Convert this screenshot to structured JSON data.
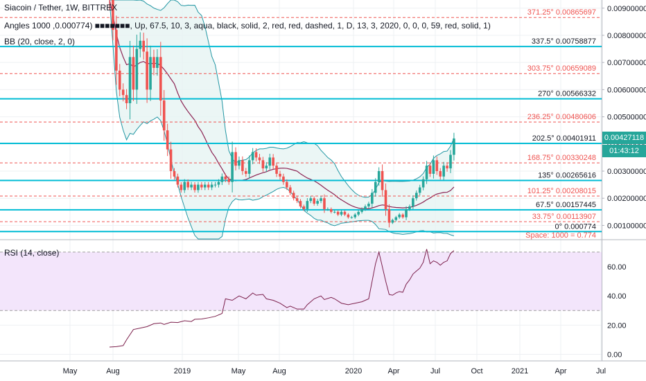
{
  "legend": {
    "symbol": "Siacoin / Tether, 1W, BITTREX",
    "angles": "Angles 1000 ,0.000774) ■■■■■■■, Up, 67.5, 10, 3, aqua, black, solid, 2, red, red, dashed, 1, D, 13, 3, 2020, 0, 0, 0, 59, red, solid, 1)",
    "bb": "BB (20, close, 2, 0)",
    "rsi": "RSI (14, close)"
  },
  "price_tag": {
    "value": "0.00427118",
    "countdown": "01:43:12"
  },
  "space_note": "Space:  1000 = 0.774",
  "colors": {
    "up": "#26a69a",
    "down": "#ef5350",
    "aqua": "#00bcd4",
    "bb_band": "#2196a3",
    "basis": "#8b2252",
    "rsi_line": "#7b1f4b",
    "rsi_zone": "#f3e5fb",
    "grid": "#eef0f3"
  },
  "chart_data": [
    {
      "type": "candlestick",
      "title": "Siacoin / Tether, 1W, BITTREX",
      "price_axis": {
        "range": [
          0.0005,
          0.0093
        ],
        "ticks": [
          0.001,
          0.002,
          0.003,
          0.004,
          0.005,
          0.006,
          0.007,
          0.008,
          0.009
        ],
        "tick_labels": [
          "0.00100000",
          "0.00200000",
          "0.00300000",
          "0.00400000",
          "0.00500000",
          "0.00600000",
          "0.00700000",
          "0.00800000",
          "0.00900000"
        ]
      },
      "time_axis": {
        "labels": [
          "May",
          "Aug",
          "2019",
          "May",
          "Aug",
          "2020",
          "Apr",
          "Jul",
          "Oct",
          "2021",
          "Apr",
          "Jul"
        ]
      },
      "angle_levels": [
        {
          "angle": "0°",
          "price": 0.000774,
          "label": "0° 0.000774",
          "style": "solid"
        },
        {
          "angle": "33.75°",
          "price": 0.00113907,
          "label": "33.75° 0.00113907",
          "style": "dashed"
        },
        {
          "angle": "67.5°",
          "price": 0.00157445,
          "label": "67.5° 0.00157445",
          "style": "solid"
        },
        {
          "angle": "101.25°",
          "price": 0.00208015,
          "label": "101.25° 0.00208015",
          "style": "dashed"
        },
        {
          "angle": "135°",
          "price": 0.00265616,
          "label": "135° 0.00265616",
          "style": "solid"
        },
        {
          "angle": "168.75°",
          "price": 0.00330248,
          "label": "168.75° 0.00330248",
          "style": "dashed"
        },
        {
          "angle": "202.5°",
          "price": 0.00401911,
          "label": "202.5° 0.00401911",
          "style": "solid"
        },
        {
          "angle": "236.25°",
          "price": 0.00480606,
          "label": "236.25° 0.00480606",
          "style": "dashed"
        },
        {
          "angle": "270°",
          "price": 0.00566332,
          "label": "270° 0.00566332",
          "style": "solid"
        },
        {
          "angle": "303.75°",
          "price": 0.00659089,
          "label": "303.75° 0.00659089",
          "style": "dashed"
        },
        {
          "angle": "337.5°",
          "price": 0.00758877,
          "label": "337.5° 0.00758877",
          "style": "solid"
        },
        {
          "angle": "371.25°",
          "price": 0.00865697,
          "label": "371.25° 0.00865697",
          "style": "dashed"
        }
      ],
      "close_path": [
        [
          0,
          0.0093
        ],
        [
          1,
          0.0082
        ],
        [
          2,
          0.0067
        ],
        [
          3,
          0.006
        ],
        [
          4,
          0.0058
        ],
        [
          5,
          0.0055
        ],
        [
          6,
          0.0072
        ],
        [
          7,
          0.006
        ],
        [
          8,
          0.0075
        ],
        [
          9,
          0.0078
        ],
        [
          10,
          0.0074
        ],
        [
          11,
          0.006
        ],
        [
          12,
          0.0072
        ],
        [
          13,
          0.0068
        ],
        [
          14,
          0.0072
        ],
        [
          15,
          0.0056
        ],
        [
          16,
          0.0045
        ],
        [
          17,
          0.0038
        ],
        [
          18,
          0.003
        ],
        [
          19,
          0.0028
        ],
        [
          20,
          0.0025
        ],
        [
          21,
          0.0023
        ],
        [
          22,
          0.0026
        ],
        [
          23,
          0.0024
        ],
        [
          24,
          0.0025
        ],
        [
          25,
          0.0023
        ],
        [
          26,
          0.0025
        ],
        [
          27,
          0.0024
        ],
        [
          28,
          0.0025
        ],
        [
          29,
          0.0024
        ],
        [
          30,
          0.0025
        ],
        [
          31,
          0.0025
        ],
        [
          32,
          0.0026
        ],
        [
          33,
          0.0028
        ],
        [
          34,
          0.0027
        ],
        [
          35,
          0.0026
        ],
        [
          36,
          0.0037
        ],
        [
          37,
          0.0032
        ],
        [
          38,
          0.0034
        ],
        [
          39,
          0.003
        ],
        [
          40,
          0.0029
        ],
        [
          41,
          0.0034
        ],
        [
          42,
          0.0037
        ],
        [
          43,
          0.0035
        ],
        [
          44,
          0.0034
        ],
        [
          45,
          0.0031
        ],
        [
          46,
          0.0032
        ],
        [
          47,
          0.0035
        ],
        [
          48,
          0.0032
        ],
        [
          49,
          0.0029
        ],
        [
          50,
          0.0028
        ],
        [
          51,
          0.0026
        ],
        [
          52,
          0.0024
        ],
        [
          53,
          0.0022
        ],
        [
          54,
          0.002
        ],
        [
          55,
          0.0019
        ],
        [
          56,
          0.0017
        ],
        [
          57,
          0.0016
        ],
        [
          58,
          0.0019
        ],
        [
          59,
          0.002
        ],
        [
          60,
          0.0018
        ],
        [
          61,
          0.0019
        ],
        [
          62,
          0.002
        ],
        [
          63,
          0.0016
        ],
        [
          64,
          0.0016
        ],
        [
          65,
          0.0015
        ],
        [
          66,
          0.0015
        ],
        [
          67,
          0.0014
        ],
        [
          68,
          0.0015
        ],
        [
          69,
          0.0014
        ],
        [
          70,
          0.0013
        ],
        [
          71,
          0.0013
        ],
        [
          72,
          0.0014
        ],
        [
          73,
          0.0015
        ],
        [
          74,
          0.0016
        ],
        [
          75,
          0.0017
        ],
        [
          76,
          0.0018
        ],
        [
          77,
          0.0022
        ],
        [
          78,
          0.0026
        ],
        [
          79,
          0.003
        ],
        [
          80,
          0.0023
        ],
        [
          81,
          0.0016
        ],
        [
          82,
          0.0011
        ],
        [
          83,
          0.0012
        ],
        [
          84,
          0.0013
        ],
        [
          85,
          0.0014
        ],
        [
          86,
          0.0013
        ],
        [
          87,
          0.0016
        ],
        [
          88,
          0.0017
        ],
        [
          89,
          0.002
        ],
        [
          90,
          0.0022
        ],
        [
          91,
          0.0024
        ],
        [
          92,
          0.0027
        ],
        [
          93,
          0.0032
        ],
        [
          94,
          0.0029
        ],
        [
          95,
          0.0034
        ],
        [
          96,
          0.003
        ],
        [
          97,
          0.0028
        ],
        [
          98,
          0.0032
        ],
        [
          99,
          0.0031
        ],
        [
          100,
          0.0036
        ],
        [
          101,
          0.0042
        ]
      ]
    },
    {
      "type": "line",
      "title": "RSI (14, close)",
      "y_axis": {
        "range": [
          -4,
          78
        ],
        "ticks": [
          0,
          20,
          40,
          60
        ],
        "tick_labels": [
          "0.00",
          "20.00",
          "40.00",
          "60.00"
        ]
      },
      "zone": [
        30,
        70
      ],
      "series": [
        {
          "name": "RSI (14, close)",
          "points": [
            [
              0,
              5
            ],
            [
              2,
              5.3
            ],
            [
              4,
              6
            ],
            [
              5,
              10
            ],
            [
              7,
              17
            ],
            [
              9,
              18
            ],
            [
              11,
              19
            ],
            [
              13,
              21
            ],
            [
              15,
              21.5
            ],
            [
              16,
              20.5
            ],
            [
              18,
              22
            ],
            [
              20,
              21.8
            ],
            [
              22,
              23
            ],
            [
              24,
              22.5
            ],
            [
              25,
              24
            ],
            [
              27,
              24.2
            ],
            [
              29,
              25
            ],
            [
              31,
              26
            ],
            [
              33,
              28
            ],
            [
              34,
              38
            ],
            [
              36,
              37
            ],
            [
              38,
              40
            ],
            [
              39,
              39
            ],
            [
              40,
              38
            ],
            [
              42,
              42
            ],
            [
              43,
              40.5
            ],
            [
              45,
              41
            ],
            [
              46,
              38
            ],
            [
              48,
              37
            ],
            [
              50,
              35
            ],
            [
              52,
              32
            ],
            [
              53,
              33
            ],
            [
              55,
              31
            ],
            [
              57,
              31
            ],
            [
              58,
              34
            ],
            [
              60,
              38
            ],
            [
              62,
              40
            ],
            [
              63,
              37.5
            ],
            [
              65,
              39
            ],
            [
              66,
              38
            ],
            [
              68,
              35
            ],
            [
              70,
              34
            ],
            [
              72,
              35
            ],
            [
              74,
              36
            ],
            [
              75,
              37
            ],
            [
              76,
              38
            ],
            [
              77,
              50
            ],
            [
              78,
              62
            ],
            [
              79,
              70
            ],
            [
              80,
              60
            ],
            [
              81,
              50
            ],
            [
              82,
              41
            ],
            [
              83,
              40.5
            ],
            [
              84,
              42
            ],
            [
              85,
              43
            ],
            [
              86,
              42.5
            ],
            [
              87,
              48
            ],
            [
              88,
              51
            ],
            [
              89,
              55
            ],
            [
              90,
              57
            ],
            [
              91,
              59
            ],
            [
              92,
              63
            ],
            [
              93,
              72
            ],
            [
              94,
              62
            ],
            [
              95,
              64
            ],
            [
              96,
              63
            ],
            [
              97,
              61
            ],
            [
              98,
              63
            ],
            [
              99,
              64
            ],
            [
              100,
              69
            ],
            [
              101,
              71
            ]
          ]
        }
      ]
    }
  ]
}
